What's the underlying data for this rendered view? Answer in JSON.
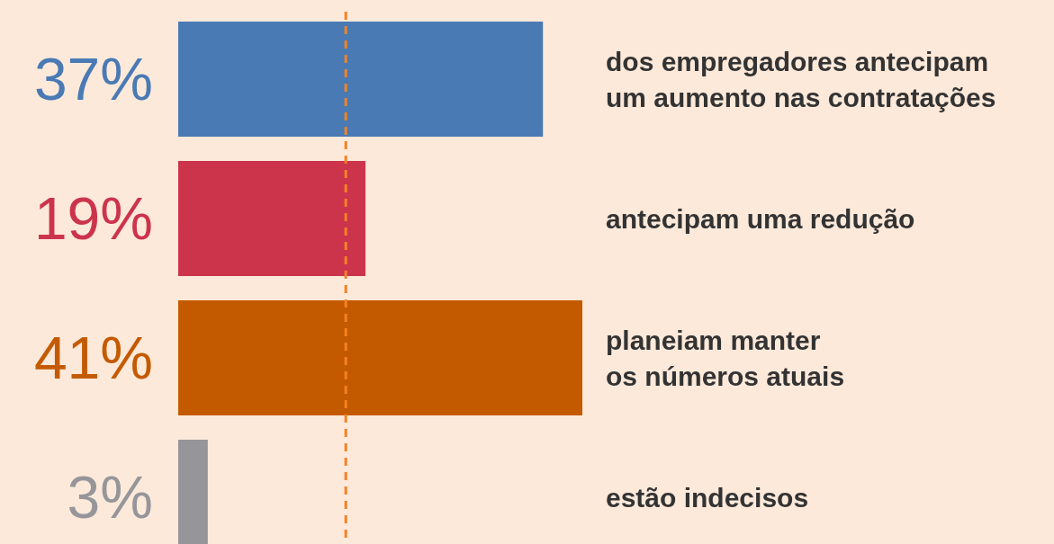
{
  "chart_data": {
    "type": "bar",
    "orientation": "horizontal",
    "categories": [
      "dos empregadores antecipam um aumento nas contratações",
      "antecipam uma redução",
      "planeiam manter os números atuais",
      "estão indecisos"
    ],
    "values": [
      37,
      19,
      41,
      3
    ],
    "colors": [
      "#4a7ab4",
      "#cc344c",
      "#c45a00",
      "#96969a"
    ],
    "value_labels": [
      "37%",
      "19%",
      "41%",
      "3%"
    ],
    "ref_lines": [
      {
        "axis": "x",
        "value": 17,
        "color": "#f58220",
        "line_style": "dashed"
      }
    ]
  }
}
